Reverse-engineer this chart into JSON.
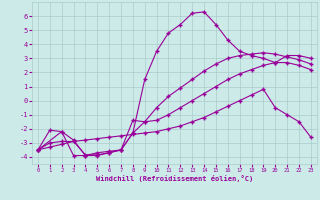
{
  "xlabel": "Windchill (Refroidissement éolien,°C)",
  "bg_color": "#cceae8",
  "line_color": "#990099",
  "grid_color": "#aacccc",
  "xlim": [
    -0.5,
    23.5
  ],
  "ylim": [
    -4.5,
    7.0
  ],
  "yticks": [
    -4,
    -3,
    -2,
    -1,
    0,
    1,
    2,
    3,
    4,
    5,
    6
  ],
  "xticks": [
    0,
    1,
    2,
    3,
    4,
    5,
    6,
    7,
    8,
    9,
    10,
    11,
    12,
    13,
    14,
    15,
    16,
    17,
    18,
    19,
    20,
    21,
    22,
    23
  ],
  "line1_x": [
    0,
    1,
    2,
    3,
    4,
    5,
    6,
    7,
    8,
    9,
    10,
    11,
    12,
    13,
    14,
    15,
    16,
    17,
    18,
    19,
    20,
    21,
    22,
    23
  ],
  "line1_y": [
    -3.5,
    -2.1,
    -2.2,
    -2.8,
    -3.9,
    -3.9,
    -3.7,
    -3.5,
    -1.4,
    -1.5,
    -0.5,
    0.3,
    0.9,
    1.5,
    2.1,
    2.6,
    3.0,
    3.2,
    3.3,
    3.4,
    3.3,
    3.1,
    2.9,
    2.6
  ],
  "line2_x": [
    0,
    1,
    2,
    3,
    4,
    5,
    6,
    7,
    8,
    9,
    10,
    11,
    12,
    13,
    14,
    15,
    16,
    17,
    18,
    19,
    20,
    21,
    22,
    23
  ],
  "line2_y": [
    -3.5,
    -3.0,
    -2.9,
    -2.9,
    -3.85,
    -3.85,
    -3.7,
    -3.5,
    -2.3,
    -1.5,
    -1.4,
    -1.0,
    -0.5,
    0.0,
    0.5,
    1.0,
    1.5,
    1.9,
    2.2,
    2.5,
    2.7,
    2.7,
    2.5,
    2.2
  ],
  "line3_x": [
    0,
    1,
    2,
    3,
    4,
    5,
    6,
    7,
    8,
    9,
    10,
    11,
    12,
    13,
    14,
    15,
    16,
    17,
    18,
    19,
    20,
    21,
    22,
    23
  ],
  "line3_y": [
    -3.5,
    -3.3,
    -3.1,
    -2.9,
    -2.8,
    -2.7,
    -2.6,
    -2.5,
    -2.4,
    -2.3,
    -2.2,
    -2.0,
    -1.8,
    -1.5,
    -1.2,
    -0.8,
    -0.4,
    0.0,
    0.4,
    0.8,
    -0.5,
    -1.0,
    -1.5,
    -2.6
  ],
  "line4_x": [
    0,
    2,
    3,
    4,
    5,
    6,
    7,
    8,
    9,
    10,
    11,
    12,
    13,
    14,
    15,
    16,
    17,
    18,
    19,
    20,
    21,
    22,
    23
  ],
  "line4_y": [
    -3.5,
    -2.2,
    -3.9,
    -3.9,
    -3.7,
    -3.6,
    -3.5,
    -2.3,
    1.5,
    3.5,
    4.8,
    5.4,
    6.2,
    6.3,
    5.4,
    4.3,
    3.5,
    3.2,
    3.0,
    2.7,
    3.2,
    3.2,
    3.0
  ],
  "marker": "+",
  "markersize": 3,
  "linewidth": 0.8
}
